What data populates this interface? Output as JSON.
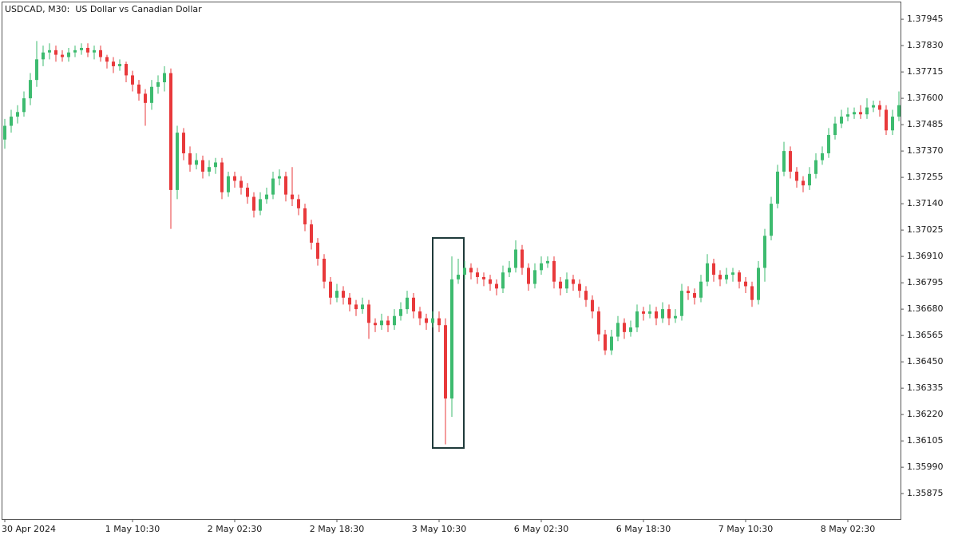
{
  "chart_data": {
    "type": "candlestick",
    "title": "USDCAD, M30:  US Dollar vs Canadian Dollar",
    "up_color": "#3dbb6f",
    "down_color": "#e8393b",
    "ylim": [
      1.35764,
      1.38022
    ],
    "yticks": [
      1.37945,
      {
        "value": 1.3783,
        "label": "1.37830"
      },
      1.37715,
      {
        "value": 1.376,
        "label": "1.37600"
      },
      1.37485,
      {
        "value": 1.3737,
        "label": "1.37370"
      },
      1.37255,
      {
        "value": 1.3714,
        "label": "1.37140"
      },
      1.37025,
      {
        "value": 1.3691,
        "label": "1.36910"
      },
      1.36795,
      {
        "value": 1.3668,
        "label": "1.36680"
      },
      1.36565,
      {
        "value": 1.3645,
        "label": "1.36450"
      },
      1.36335,
      {
        "value": 1.3622,
        "label": "1.36220"
      },
      1.36105,
      {
        "value": 1.3599,
        "label": "1.35990"
      },
      1.35875
    ],
    "x": [
      "30 Apr 2024",
      null,
      null,
      null,
      null,
      null,
      null,
      null,
      null,
      null,
      null,
      null,
      null,
      null,
      null,
      null,
      null,
      null,
      null,
      null,
      "1 May 10:30",
      null,
      null,
      null,
      null,
      null,
      null,
      null,
      null,
      null,
      null,
      null,
      null,
      null,
      null,
      null,
      "2 May 02:30",
      null,
      null,
      null,
      null,
      null,
      null,
      null,
      null,
      null,
      null,
      null,
      null,
      null,
      null,
      null,
      "2 May 18:30",
      null,
      null,
      null,
      null,
      null,
      null,
      null,
      null,
      null,
      null,
      null,
      null,
      null,
      null,
      null,
      "3 May 10:30",
      null,
      null,
      null,
      null,
      null,
      null,
      null,
      null,
      null,
      null,
      null,
      null,
      null,
      null,
      null,
      "6 May 02:30",
      null,
      null,
      null,
      null,
      null,
      null,
      null,
      null,
      null,
      null,
      null,
      null,
      null,
      null,
      null,
      "6 May 18:30",
      null,
      null,
      null,
      null,
      null,
      null,
      null,
      null,
      null,
      null,
      null,
      null,
      null,
      null,
      null,
      "7 May 10:30",
      null,
      null,
      null,
      null,
      null,
      null,
      null,
      null,
      null,
      null,
      null,
      null,
      null,
      null,
      null,
      "8 May 02:30",
      null,
      null,
      null,
      null,
      null,
      null,
      null,
      null
    ],
    "ohlc": [
      [
        1.3742,
        1.3751,
        1.3738,
        1.3748
      ],
      [
        1.3748,
        1.3755,
        1.3745,
        1.3752
      ],
      [
        1.3752,
        1.3757,
        1.3749,
        1.3754
      ],
      [
        1.3754,
        1.3763,
        1.3752,
        1.376
      ],
      [
        1.376,
        1.3771,
        1.3757,
        1.3768
      ],
      [
        1.3768,
        1.3785,
        1.3765,
        1.3777
      ],
      [
        1.3777,
        1.3783,
        1.3774,
        1.378
      ],
      [
        1.378,
        1.3784,
        1.3777,
        1.3781
      ],
      [
        1.3781,
        1.3783,
        1.3776,
        1.3779
      ],
      [
        1.3779,
        1.3781,
        1.3776,
        1.3778
      ],
      [
        1.3778,
        1.3782,
        1.3776,
        1.378
      ],
      [
        1.378,
        1.3783,
        1.3778,
        1.3781
      ],
      [
        1.3781,
        1.3784,
        1.3779,
        1.3782
      ],
      [
        1.3782,
        1.3784,
        1.3778,
        1.378
      ],
      [
        1.378,
        1.3783,
        1.3777,
        1.3781
      ],
      [
        1.3781,
        1.3783,
        1.3776,
        1.3778
      ],
      [
        1.3778,
        1.3779,
        1.3773,
        1.3776
      ],
      [
        1.3776,
        1.3778,
        1.3771,
        1.3774
      ],
      [
        1.3774,
        1.3777,
        1.3772,
        1.3775
      ],
      [
        1.3775,
        1.3776,
        1.3767,
        1.377
      ],
      [
        1.377,
        1.3772,
        1.3763,
        1.3766
      ],
      [
        1.3766,
        1.3768,
        1.3759,
        1.3762
      ],
      [
        1.3762,
        1.3764,
        1.3748,
        1.3758
      ],
      [
        1.3758,
        1.3768,
        1.3755,
        1.3765
      ],
      [
        1.3765,
        1.377,
        1.3762,
        1.3767
      ],
      [
        1.3767,
        1.3774,
        1.3763,
        1.3771
      ],
      [
        1.3771,
        1.3773,
        1.3703,
        1.372
      ],
      [
        1.372,
        1.3748,
        1.3716,
        1.3745
      ],
      [
        1.3745,
        1.3747,
        1.3733,
        1.3736
      ],
      [
        1.3736,
        1.3739,
        1.3728,
        1.3731
      ],
      [
        1.3731,
        1.3736,
        1.3729,
        1.3733
      ],
      [
        1.3733,
        1.3735,
        1.3725,
        1.3728
      ],
      [
        1.3728,
        1.3733,
        1.3726,
        1.373
      ],
      [
        1.373,
        1.3734,
        1.3727,
        1.3732
      ],
      [
        1.3732,
        1.3734,
        1.3716,
        1.3719
      ],
      [
        1.3719,
        1.3728,
        1.3717,
        1.3726
      ],
      [
        1.3726,
        1.3728,
        1.3721,
        1.3724
      ],
      [
        1.3724,
        1.3726,
        1.3718,
        1.3721
      ],
      [
        1.3721,
        1.3723,
        1.3714,
        1.3717
      ],
      [
        1.3717,
        1.3719,
        1.3708,
        1.3711
      ],
      [
        1.3711,
        1.3719,
        1.3709,
        1.3716
      ],
      [
        1.3716,
        1.3721,
        1.3714,
        1.3718
      ],
      [
        1.3718,
        1.3728,
        1.3716,
        1.3725
      ],
      [
        1.3725,
        1.3729,
        1.3722,
        1.3726
      ],
      [
        1.3726,
        1.3728,
        1.3715,
        1.3718
      ],
      [
        1.3718,
        1.373,
        1.3713,
        1.3716
      ],
      [
        1.3716,
        1.3718,
        1.3709,
        1.3712
      ],
      [
        1.3712,
        1.3714,
        1.3702,
        1.3705
      ],
      [
        1.3705,
        1.3707,
        1.3694,
        1.3697
      ],
      [
        1.3697,
        1.3699,
        1.3687,
        1.369
      ],
      [
        1.369,
        1.3692,
        1.3677,
        1.368
      ],
      [
        1.368,
        1.3682,
        1.367,
        1.3673
      ],
      [
        1.3673,
        1.3679,
        1.3671,
        1.3676
      ],
      [
        1.3676,
        1.3678,
        1.367,
        1.3673
      ],
      [
        1.3673,
        1.3675,
        1.3667,
        1.367
      ],
      [
        1.367,
        1.3672,
        1.3665,
        1.3668
      ],
      [
        1.3668,
        1.3673,
        1.3666,
        1.367
      ],
      [
        1.367,
        1.3672,
        1.3655,
        1.3662
      ],
      [
        1.3662,
        1.3664,
        1.3658,
        1.3661
      ],
      [
        1.3661,
        1.3666,
        1.3659,
        1.3663
      ],
      [
        1.3663,
        1.3665,
        1.3658,
        1.3661
      ],
      [
        1.3661,
        1.3668,
        1.3659,
        1.3665
      ],
      [
        1.3665,
        1.3671,
        1.3663,
        1.3668
      ],
      [
        1.3668,
        1.3676,
        1.3666,
        1.3673
      ],
      [
        1.3673,
        1.3675,
        1.3664,
        1.3667
      ],
      [
        1.3667,
        1.3669,
        1.3661,
        1.3664
      ],
      [
        1.3664,
        1.3666,
        1.3659,
        1.3662
      ],
      [
        1.3662,
        1.3667,
        1.366,
        1.3664
      ],
      [
        1.3664,
        1.3667,
        1.3658,
        1.3661
      ],
      [
        1.3661,
        1.3664,
        1.3609,
        1.3629
      ],
      [
        1.3629,
        1.3691,
        1.3621,
        1.3681
      ],
      [
        1.3681,
        1.369,
        1.3679,
        1.3683
      ],
      [
        1.3683,
        1.3689,
        1.3681,
        1.3686
      ],
      [
        1.3686,
        1.3688,
        1.3681,
        1.3684
      ],
      [
        1.3684,
        1.3686,
        1.3679,
        1.3682
      ],
      [
        1.3682,
        1.3684,
        1.3678,
        1.3681
      ],
      [
        1.3681,
        1.3683,
        1.3676,
        1.3679
      ],
      [
        1.3679,
        1.3681,
        1.3674,
        1.3677
      ],
      [
        1.3677,
        1.3687,
        1.3675,
        1.3684
      ],
      [
        1.3684,
        1.3689,
        1.3682,
        1.3686
      ],
      [
        1.3686,
        1.3698,
        1.3684,
        1.3694
      ],
      [
        1.3694,
        1.3696,
        1.3683,
        1.3686
      ],
      [
        1.3686,
        1.3688,
        1.3676,
        1.3679
      ],
      [
        1.3679,
        1.3688,
        1.3677,
        1.3685
      ],
      [
        1.3685,
        1.3691,
        1.3683,
        1.3688
      ],
      [
        1.3688,
        1.3691,
        1.3686,
        1.3689
      ],
      [
        1.3689,
        1.3691,
        1.3677,
        1.368
      ],
      [
        1.368,
        1.3682,
        1.3674,
        1.3677
      ],
      [
        1.3677,
        1.3684,
        1.3675,
        1.3681
      ],
      [
        1.3681,
        1.3683,
        1.3676,
        1.3679
      ],
      [
        1.3679,
        1.3681,
        1.3673,
        1.3676
      ],
      [
        1.3676,
        1.3678,
        1.3669,
        1.3672
      ],
      [
        1.3672,
        1.3674,
        1.3664,
        1.3667
      ],
      [
        1.3667,
        1.3669,
        1.3654,
        1.3657
      ],
      [
        1.3657,
        1.3659,
        1.3648,
        1.365
      ],
      [
        1.365,
        1.3659,
        1.3648,
        1.3656
      ],
      [
        1.3656,
        1.3665,
        1.3654,
        1.3662
      ],
      [
        1.3662,
        1.3664,
        1.3655,
        1.3658
      ],
      [
        1.3658,
        1.3663,
        1.3656,
        1.366
      ],
      [
        1.366,
        1.367,
        1.3658,
        1.3667
      ],
      [
        1.3667,
        1.3669,
        1.3663,
        1.3666
      ],
      [
        1.3666,
        1.367,
        1.3664,
        1.3667
      ],
      [
        1.3667,
        1.3669,
        1.3661,
        1.3664
      ],
      [
        1.3664,
        1.3671,
        1.3662,
        1.3668
      ],
      [
        1.3668,
        1.367,
        1.3661,
        1.3664
      ],
      [
        1.3664,
        1.3668,
        1.3662,
        1.3665
      ],
      [
        1.3665,
        1.3679,
        1.3663,
        1.3676
      ],
      [
        1.3676,
        1.3678,
        1.3672,
        1.3675
      ],
      [
        1.3675,
        1.3677,
        1.367,
        1.3673
      ],
      [
        1.3673,
        1.3683,
        1.3671,
        1.368
      ],
      [
        1.368,
        1.3692,
        1.3678,
        1.3688
      ],
      [
        1.3688,
        1.369,
        1.368,
        1.3683
      ],
      [
        1.3683,
        1.3685,
        1.3678,
        1.3681
      ],
      [
        1.3681,
        1.3686,
        1.3679,
        1.3683
      ],
      [
        1.3683,
        1.3686,
        1.368,
        1.3684
      ],
      [
        1.3684,
        1.3685,
        1.3677,
        1.368
      ],
      [
        1.368,
        1.3682,
        1.3675,
        1.3678
      ],
      [
        1.3678,
        1.368,
        1.3669,
        1.3672
      ],
      [
        1.3672,
        1.3689,
        1.367,
        1.3686
      ],
      [
        1.3686,
        1.3703,
        1.368,
        1.37
      ],
      [
        1.37,
        1.3717,
        1.3698,
        1.3714
      ],
      [
        1.3714,
        1.3731,
        1.3712,
        1.3728
      ],
      [
        1.3728,
        1.3741,
        1.3726,
        1.3737
      ],
      [
        1.3737,
        1.3739,
        1.3725,
        1.3728
      ],
      [
        1.3728,
        1.373,
        1.3721,
        1.3724
      ],
      [
        1.3724,
        1.3726,
        1.3719,
        1.3722
      ],
      [
        1.3722,
        1.373,
        1.372,
        1.3727
      ],
      [
        1.3727,
        1.3736,
        1.3725,
        1.3733
      ],
      [
        1.3733,
        1.3739,
        1.3731,
        1.3736
      ],
      [
        1.3736,
        1.3747,
        1.3734,
        1.3744
      ],
      [
        1.3744,
        1.3752,
        1.3742,
        1.3749
      ],
      [
        1.3749,
        1.3755,
        1.3747,
        1.3752
      ],
      [
        1.3752,
        1.3756,
        1.375,
        1.3753
      ],
      [
        1.3753,
        1.3756,
        1.3751,
        1.3754
      ],
      [
        1.3754,
        1.3757,
        1.3751,
        1.3753
      ],
      [
        1.3753,
        1.376,
        1.3751,
        1.3756
      ],
      [
        1.3756,
        1.3759,
        1.3754,
        1.3757
      ],
      [
        1.3757,
        1.3759,
        1.3752,
        1.3755
      ],
      [
        1.3755,
        1.3757,
        1.3744,
        1.3746
      ],
      [
        1.3746,
        1.3755,
        1.3744,
        1.3752
      ],
      [
        1.3752,
        1.3763,
        1.375,
        1.3757
      ]
    ]
  }
}
